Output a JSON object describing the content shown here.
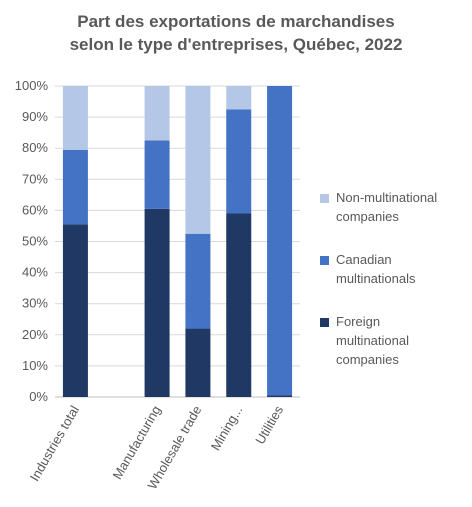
{
  "chart_data": {
    "type": "bar",
    "stacked": true,
    "title_lines": [
      "Part des exportations de marchandises",
      "selon le type d'entreprises, Québec, 2022"
    ],
    "xlabel": "",
    "ylabel": "",
    "categories": [
      "Industries total",
      "",
      "Manufacturing",
      "Wholesale trade",
      "Mining...",
      "Utilities"
    ],
    "y_ticks": [
      "0%",
      "10%",
      "20%",
      "30%",
      "40%",
      "50%",
      "60%",
      "70%",
      "80%",
      "90%",
      "100%"
    ],
    "ylim": [
      0,
      100
    ],
    "grid": true,
    "legend_position": "right",
    "series": [
      {
        "name": "Foreign multinational companies",
        "color": "#203864",
        "values": [
          55.5,
          0,
          60.5,
          22,
          59,
          0.5
        ]
      },
      {
        "name": "Canadian multinationals",
        "color": "#4472C4",
        "values": [
          24,
          0,
          22,
          30.5,
          33.5,
          99.5
        ]
      },
      {
        "name": "Non-multinational companies",
        "color": "#B4C7E7",
        "values": [
          20.5,
          0,
          17.5,
          47.5,
          7.5,
          0
        ]
      }
    ],
    "legend_order": [
      2,
      1,
      0
    ],
    "legend_lines": [
      [
        "Non-multinational",
        "companies"
      ],
      [
        "Canadian",
        "multinationals"
      ],
      [
        "Foreign",
        "multinational",
        "companies"
      ]
    ]
  }
}
